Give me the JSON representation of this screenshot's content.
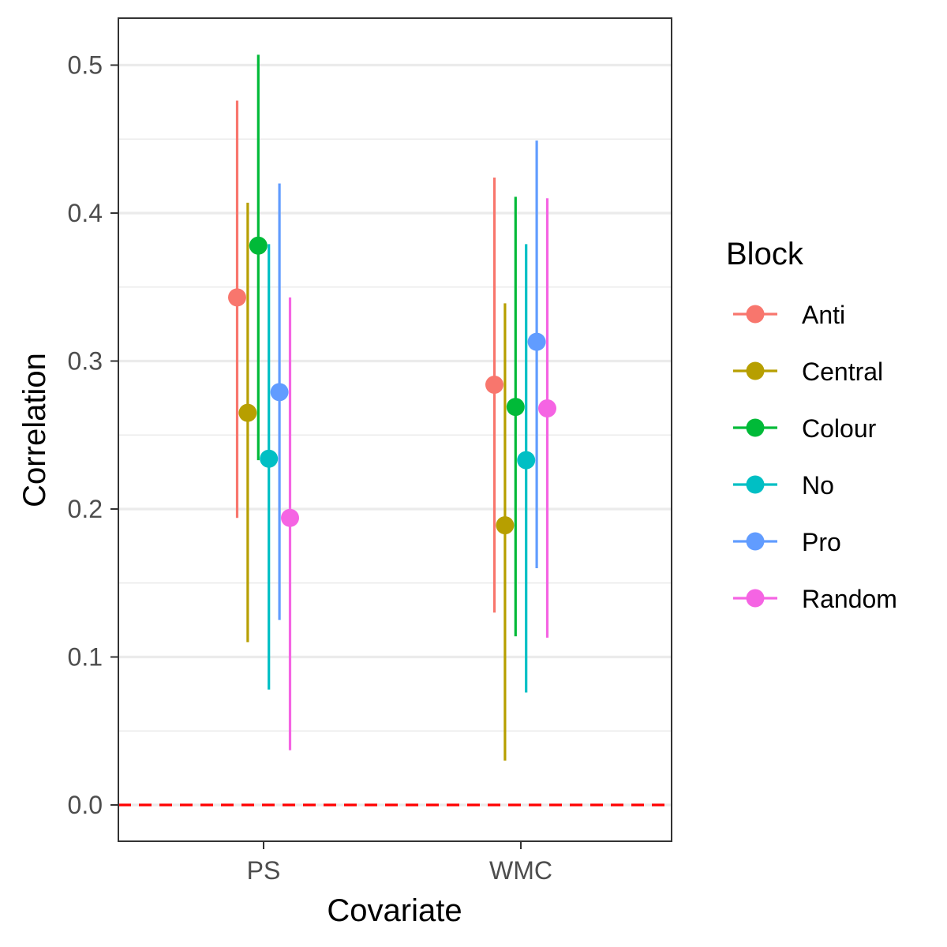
{
  "chart_data": {
    "type": "scatter",
    "title": "",
    "xlabel": "Covariate",
    "ylabel": "Correlation",
    "categories": [
      "PS",
      "WMC"
    ],
    "ylim": [
      -0.025,
      0.532
    ],
    "yticks": [
      0.0,
      0.1,
      0.2,
      0.3,
      0.4,
      0.5
    ],
    "ytick_labels": [
      "0.0",
      "0.1",
      "0.2",
      "0.3",
      "0.4",
      "0.5"
    ],
    "grid": true,
    "reference_line": {
      "y": 0.0,
      "style": "dashed",
      "color": "#ff0000"
    },
    "legend": {
      "title": "Block",
      "placement": "right"
    },
    "series": [
      {
        "name": "Anti",
        "color": "#F8766D",
        "values": [
          0.343,
          0.284
        ],
        "lower": [
          0.194,
          0.13
        ],
        "upper": [
          0.476,
          0.424
        ]
      },
      {
        "name": "Central",
        "color": "#B79F00",
        "values": [
          0.265,
          0.189
        ],
        "lower": [
          0.11,
          0.03
        ],
        "upper": [
          0.407,
          0.339
        ]
      },
      {
        "name": "Colour",
        "color": "#00BA38",
        "values": [
          0.378,
          0.269
        ],
        "lower": [
          0.233,
          0.114
        ],
        "upper": [
          0.507,
          0.411
        ]
      },
      {
        "name": "No",
        "color": "#00BFC4",
        "values": [
          0.234,
          0.233
        ],
        "lower": [
          0.078,
          0.076
        ],
        "upper": [
          0.379,
          0.379
        ]
      },
      {
        "name": "Pro",
        "color": "#619CFF",
        "values": [
          0.279,
          0.313
        ],
        "lower": [
          0.125,
          0.16
        ],
        "upper": [
          0.42,
          0.449
        ]
      },
      {
        "name": "Random",
        "color": "#F564E3",
        "values": [
          0.194,
          0.268
        ],
        "lower": [
          0.037,
          0.113
        ],
        "upper": [
          0.343,
          0.41
        ]
      }
    ]
  }
}
